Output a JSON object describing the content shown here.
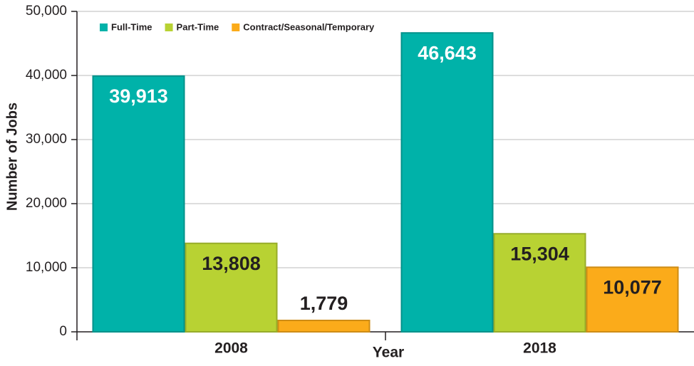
{
  "chart_data": {
    "type": "bar",
    "y_label": "Number of Jobs",
    "x_label": "Year",
    "categories": [
      "2008",
      "2018"
    ],
    "series": [
      {
        "name": "Full-Time",
        "color": "#00b2a9",
        "values": [
          39913,
          46643
        ],
        "value_labels": [
          "39,913",
          "46,643"
        ]
      },
      {
        "name": "Part-Time",
        "color": "#b8d233",
        "values": [
          13808,
          15304
        ],
        "value_labels": [
          "13,808",
          "15,304"
        ]
      },
      {
        "name": "Contract/Seasonal/Temporary",
        "color": "#fbab1a",
        "values": [
          1779,
          10077
        ],
        "value_labels": [
          "1,779",
          "10,077"
        ]
      }
    ],
    "ylim": [
      0,
      50000
    ],
    "yticks": [
      0,
      {
        "value": 10000,
        "label": "10,000"
      },
      {
        "value": 20000,
        "label": "20,000"
      },
      {
        "value": 30000,
        "label": "30,000"
      },
      {
        "value": 40000,
        "label": "40,000"
      },
      {
        "value": 50000,
        "label": "50,000"
      }
    ],
    "grid": true,
    "legend": "top-left"
  }
}
